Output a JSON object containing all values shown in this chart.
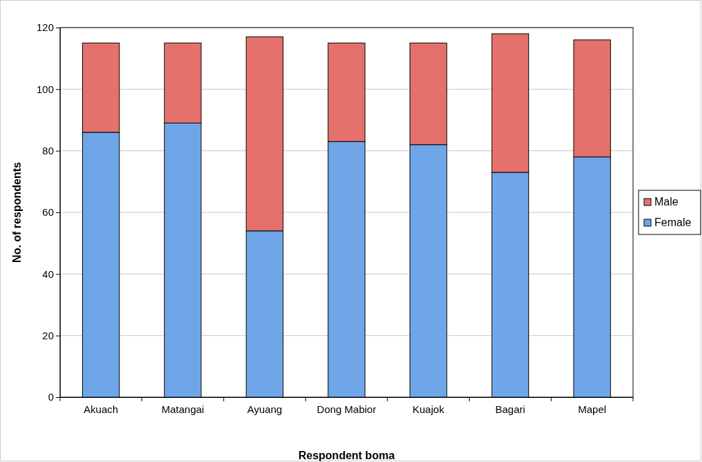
{
  "chart_data": {
    "type": "bar",
    "stacked": true,
    "xlabel": "Respondent boma",
    "ylabel": "No. of respondents",
    "categories": [
      "Akuach",
      "Matangai",
      "Ayuang",
      "Dong Mabior",
      "Kuajok",
      "Bagari",
      "Mapel"
    ],
    "series": [
      {
        "name": "Female",
        "color": "#6fa6e8",
        "values": [
          86,
          89,
          54,
          83,
          82,
          73,
          78
        ]
      },
      {
        "name": "Male",
        "color": "#e4716b",
        "values": [
          29,
          26,
          63,
          32,
          33,
          45,
          38
        ]
      }
    ],
    "ylim": [
      0,
      120
    ],
    "yticks": [
      0,
      20,
      40,
      60,
      80,
      100,
      120
    ],
    "grid": "y",
    "legend": "right"
  }
}
